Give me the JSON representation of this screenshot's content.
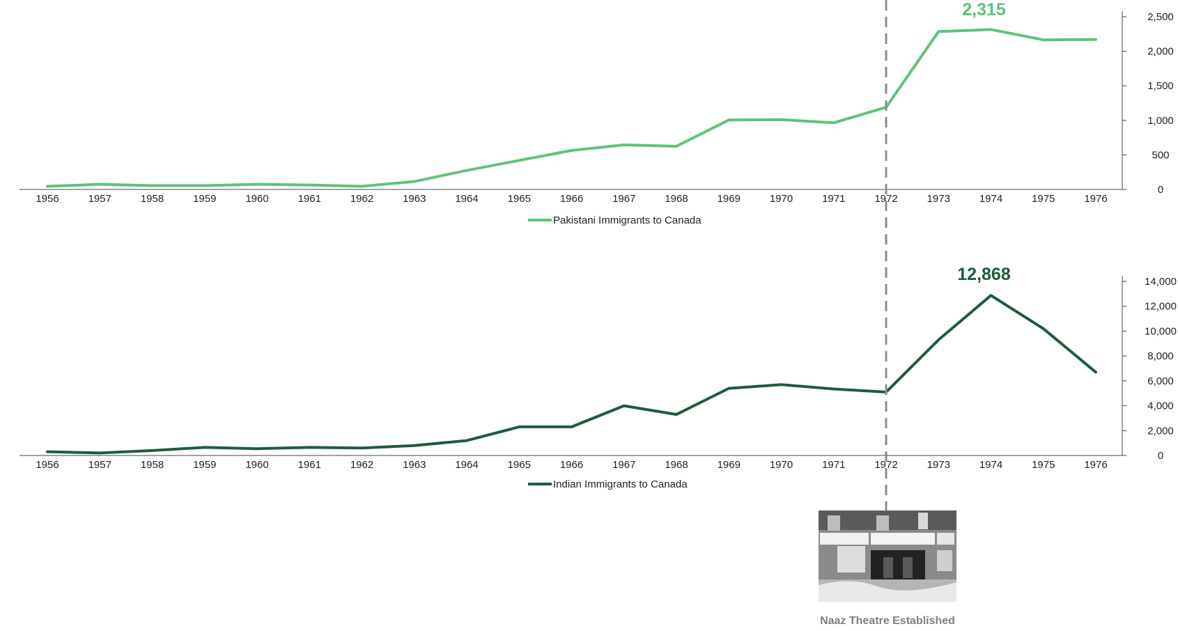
{
  "chart_data": [
    {
      "type": "line",
      "x": [
        "1956",
        "1957",
        "1958",
        "1959",
        "1960",
        "1961",
        "1962",
        "1963",
        "1964",
        "1965",
        "1966",
        "1967",
        "1968",
        "1969",
        "1970",
        "1971",
        "1972",
        "1973",
        "1974",
        "1975",
        "1976"
      ],
      "series": [
        {
          "name": "Pakistani Immigrants to Canada",
          "values": [
            45,
            75,
            55,
            55,
            75,
            65,
            45,
            115,
            275,
            420,
            565,
            645,
            625,
            1005,
            1010,
            965,
            1190,
            2285,
            2315,
            2165,
            2170
          ],
          "color": "#5cc47a"
        }
      ],
      "ylim": [
        0,
        2500
      ],
      "yticks": [
        "0",
        "500",
        "1,000",
        "1,500",
        "2,000",
        "2,500"
      ],
      "yaxis_side": "right",
      "peak_label": "2,315",
      "legend_position": "bottom"
    },
    {
      "type": "line",
      "x": [
        "1956",
        "1957",
        "1958",
        "1959",
        "1960",
        "1961",
        "1962",
        "1963",
        "1964",
        "1965",
        "1966",
        "1967",
        "1968",
        "1969",
        "1970",
        "1971",
        "1972",
        "1973",
        "1974",
        "1975",
        "1976"
      ],
      "series": [
        {
          "name": "Indian Immigrants to Canada",
          "values": [
            300,
            200,
            400,
            650,
            550,
            650,
            600,
            800,
            1200,
            2300,
            2300,
            4000,
            3300,
            5400,
            5700,
            5350,
            5100,
            9300,
            12868,
            10200,
            6700
          ],
          "color": "#1e5c3a"
        }
      ],
      "ylim": [
        0,
        14000
      ],
      "yticks": [
        "0",
        "2,000",
        "4,000",
        "6,000",
        "8,000",
        "10,000",
        "12,000",
        "14,000"
      ],
      "yaxis_side": "right",
      "peak_label": "12,868",
      "legend_position": "bottom"
    }
  ],
  "annotation": {
    "year": "1972",
    "caption": "Naaz Theatre Established"
  }
}
